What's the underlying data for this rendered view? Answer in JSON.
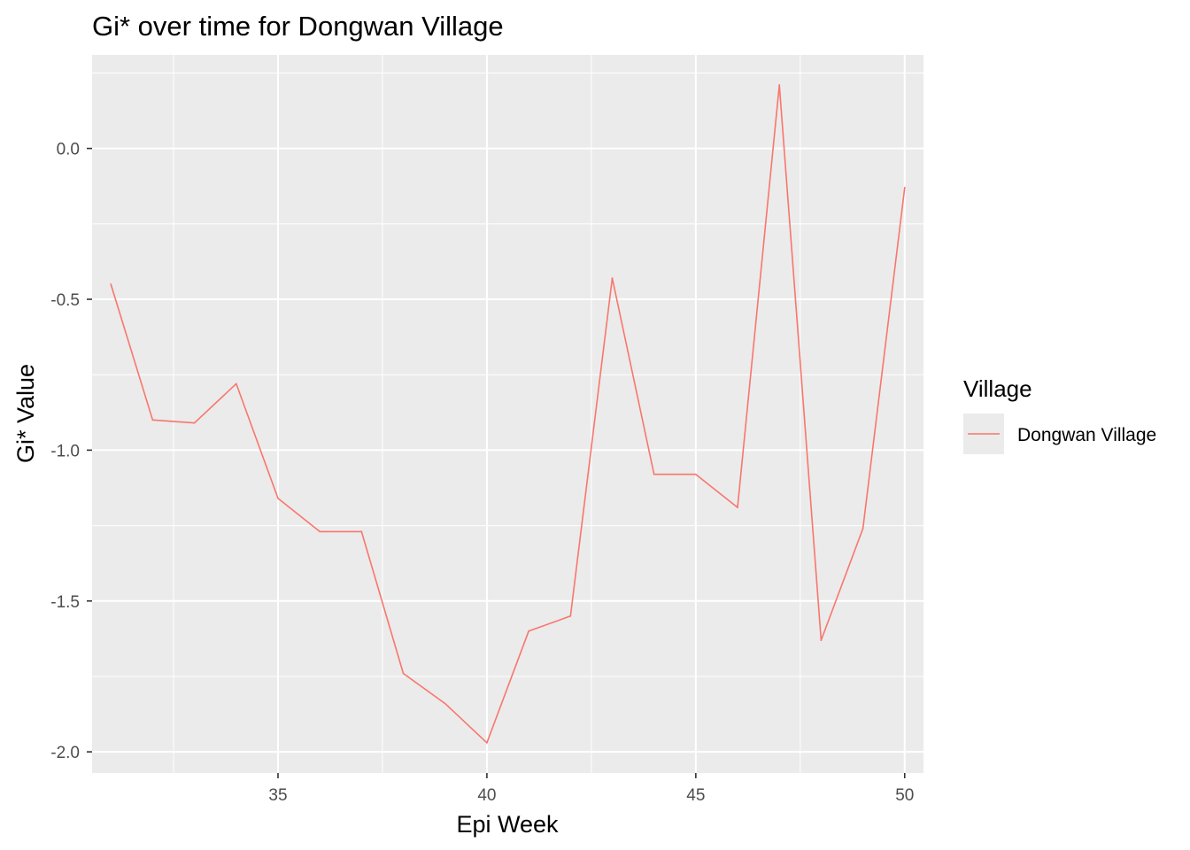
{
  "chart_data": {
    "type": "line",
    "title": "Gi* over time for Dongwan Village",
    "xlabel": "Epi Week",
    "ylabel": "Gi* Value",
    "xlim": [
      30.55,
      50.45
    ],
    "ylim": [
      -2.07,
      0.31
    ],
    "x_ticks": [
      35,
      40,
      45,
      50
    ],
    "x_tick_labels": [
      "35",
      "40",
      "45",
      "50"
    ],
    "y_ticks": [
      -2.0,
      -1.5,
      -1.0,
      -0.5,
      0.0
    ],
    "y_tick_labels": [
      "-2.0",
      "-1.5",
      "-1.0",
      "-0.5",
      "0.0"
    ],
    "x_minor_ticks": [
      32.5,
      37.5,
      42.5,
      47.5
    ],
    "y_minor_ticks": [
      -1.75,
      -1.25,
      -0.75,
      -0.25,
      0.25
    ],
    "grid": true,
    "legend": {
      "title": "Village",
      "position": "right",
      "entries": [
        "Dongwan Village"
      ]
    },
    "series": [
      {
        "name": "Dongwan Village",
        "color": "#F8766D",
        "x": [
          31,
          32,
          33,
          34,
          35,
          36,
          37,
          38,
          39,
          40,
          41,
          42,
          43,
          44,
          45,
          46,
          47,
          48,
          49,
          50
        ],
        "y": [
          -0.45,
          -0.9,
          -0.91,
          -0.78,
          -1.16,
          -1.27,
          -1.27,
          -1.74,
          -1.84,
          -1.97,
          -1.6,
          -1.55,
          -0.43,
          -1.08,
          -1.08,
          -1.19,
          0.21,
          -1.63,
          -1.26,
          -0.13
        ]
      }
    ]
  }
}
